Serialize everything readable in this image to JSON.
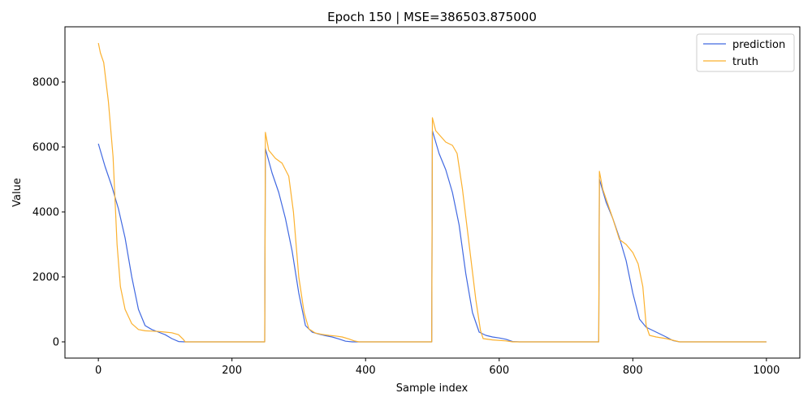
{
  "chart_data": {
    "type": "line",
    "title": "Epoch 150 | MSE=386503.875000",
    "xlabel": "Sample index",
    "ylabel": "Value",
    "xlim": [
      -50,
      1050
    ],
    "ylim": [
      -500,
      9700
    ],
    "xticks": [
      0,
      200,
      400,
      600,
      800,
      1000
    ],
    "yticks": [
      0,
      2000,
      4000,
      6000,
      8000
    ],
    "grid": false,
    "legend_position": "top-right",
    "series": [
      {
        "name": "prediction",
        "color": "#4169e1",
        "points": [
          [
            0,
            6100
          ],
          [
            10,
            5400
          ],
          [
            20,
            4800
          ],
          [
            30,
            4100
          ],
          [
            40,
            3200
          ],
          [
            50,
            2000
          ],
          [
            60,
            1000
          ],
          [
            70,
            500
          ],
          [
            80,
            380
          ],
          [
            90,
            300
          ],
          [
            100,
            220
          ],
          [
            110,
            100
          ],
          [
            120,
            10
          ],
          [
            130,
            0
          ],
          [
            249,
            0
          ],
          [
            250,
            5950
          ],
          [
            260,
            5200
          ],
          [
            270,
            4600
          ],
          [
            280,
            3800
          ],
          [
            290,
            2800
          ],
          [
            300,
            1500
          ],
          [
            310,
            500
          ],
          [
            320,
            300
          ],
          [
            330,
            240
          ],
          [
            340,
            190
          ],
          [
            350,
            150
          ],
          [
            360,
            90
          ],
          [
            370,
            20
          ],
          [
            380,
            0
          ],
          [
            499,
            0
          ],
          [
            500,
            6500
          ],
          [
            510,
            5800
          ],
          [
            520,
            5300
          ],
          [
            530,
            4600
          ],
          [
            540,
            3600
          ],
          [
            550,
            2100
          ],
          [
            560,
            900
          ],
          [
            570,
            300
          ],
          [
            580,
            200
          ],
          [
            590,
            150
          ],
          [
            600,
            120
          ],
          [
            610,
            80
          ],
          [
            620,
            10
          ],
          [
            630,
            0
          ],
          [
            749,
            0
          ],
          [
            750,
            5000
          ],
          [
            760,
            4300
          ],
          [
            770,
            3800
          ],
          [
            780,
            3200
          ],
          [
            790,
            2500
          ],
          [
            800,
            1500
          ],
          [
            810,
            700
          ],
          [
            820,
            450
          ],
          [
            830,
            350
          ],
          [
            840,
            250
          ],
          [
            850,
            150
          ],
          [
            860,
            40
          ],
          [
            870,
            0
          ],
          [
            1000,
            0
          ]
        ]
      },
      {
        "name": "truth",
        "color": "#fbb12f",
        "points": [
          [
            0,
            9200
          ],
          [
            3,
            8900
          ],
          [
            8,
            8600
          ],
          [
            15,
            7400
          ],
          [
            22,
            5700
          ],
          [
            28,
            3000
          ],
          [
            33,
            1700
          ],
          [
            40,
            1000
          ],
          [
            50,
            560
          ],
          [
            60,
            380
          ],
          [
            70,
            340
          ],
          [
            80,
            330
          ],
          [
            90,
            320
          ],
          [
            100,
            300
          ],
          [
            110,
            280
          ],
          [
            120,
            220
          ],
          [
            127,
            80
          ],
          [
            130,
            0
          ],
          [
            249,
            0
          ],
          [
            250,
            6450
          ],
          [
            255,
            5900
          ],
          [
            265,
            5650
          ],
          [
            275,
            5500
          ],
          [
            285,
            5100
          ],
          [
            292,
            4000
          ],
          [
            300,
            2000
          ],
          [
            308,
            900
          ],
          [
            315,
            400
          ],
          [
            325,
            270
          ],
          [
            335,
            230
          ],
          [
            345,
            200
          ],
          [
            355,
            180
          ],
          [
            365,
            150
          ],
          [
            375,
            90
          ],
          [
            383,
            30
          ],
          [
            390,
            0
          ],
          [
            499,
            0
          ],
          [
            500,
            6900
          ],
          [
            505,
            6500
          ],
          [
            520,
            6150
          ],
          [
            530,
            6050
          ],
          [
            537,
            5800
          ],
          [
            545,
            4700
          ],
          [
            555,
            3000
          ],
          [
            565,
            1300
          ],
          [
            572,
            350
          ],
          [
            576,
            100
          ],
          [
            590,
            60
          ],
          [
            610,
            30
          ],
          [
            620,
            0
          ],
          [
            749,
            0
          ],
          [
            750,
            5250
          ],
          [
            755,
            4700
          ],
          [
            770,
            3800
          ],
          [
            780,
            3150
          ],
          [
            790,
            3000
          ],
          [
            800,
            2750
          ],
          [
            808,
            2400
          ],
          [
            815,
            1700
          ],
          [
            820,
            500
          ],
          [
            825,
            200
          ],
          [
            835,
            150
          ],
          [
            850,
            100
          ],
          [
            860,
            50
          ],
          [
            870,
            0
          ],
          [
            1000,
            0
          ]
        ]
      }
    ]
  }
}
